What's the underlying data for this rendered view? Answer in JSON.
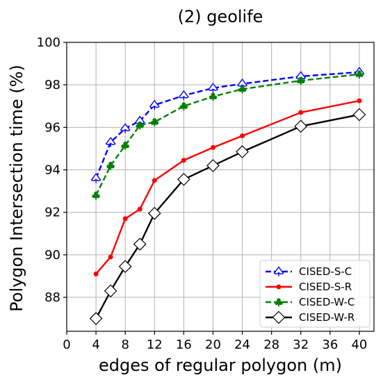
{
  "chart_data": {
    "type": "line",
    "title": "(2) geolife",
    "xlabel": "edges of regular polygon (m)",
    "ylabel": "Polygon Intersection time (%)",
    "xlim": [
      0,
      42
    ],
    "ylim": [
      86.4,
      100
    ],
    "xticks": [
      0,
      4,
      8,
      12,
      16,
      20,
      24,
      28,
      32,
      36,
      40
    ],
    "yticks": [
      88,
      90,
      92,
      94,
      96,
      98,
      100
    ],
    "grid": true,
    "legend_position": "lower-right",
    "x": [
      4,
      6,
      8,
      10,
      12,
      16,
      20,
      24,
      32,
      40
    ],
    "series": [
      {
        "name": "CISED-S-C",
        "color": "#0000ff",
        "dash": "dashed",
        "marker": "spade",
        "values": [
          93.6,
          95.3,
          95.95,
          96.3,
          97.05,
          97.5,
          97.85,
          98.05,
          98.4,
          98.6
        ]
      },
      {
        "name": "CISED-S-R",
        "color": "#ff0000",
        "dash": "solid",
        "marker": "dot",
        "values": [
          89.1,
          89.9,
          91.7,
          92.15,
          93.5,
          94.45,
          95.05,
          95.6,
          96.7,
          97.25
        ]
      },
      {
        "name": "CISED-W-C",
        "color": "#008000",
        "dash": "dashed",
        "marker": "club",
        "values": [
          92.8,
          94.2,
          95.15,
          96.1,
          96.25,
          97.0,
          97.45,
          97.8,
          98.2,
          98.5
        ]
      },
      {
        "name": "CISED-W-R",
        "color": "#000000",
        "dash": "solid",
        "marker": "diamond",
        "values": [
          87.0,
          88.3,
          89.45,
          90.5,
          91.95,
          93.55,
          94.2,
          94.85,
          96.05,
          96.6
        ]
      }
    ]
  }
}
